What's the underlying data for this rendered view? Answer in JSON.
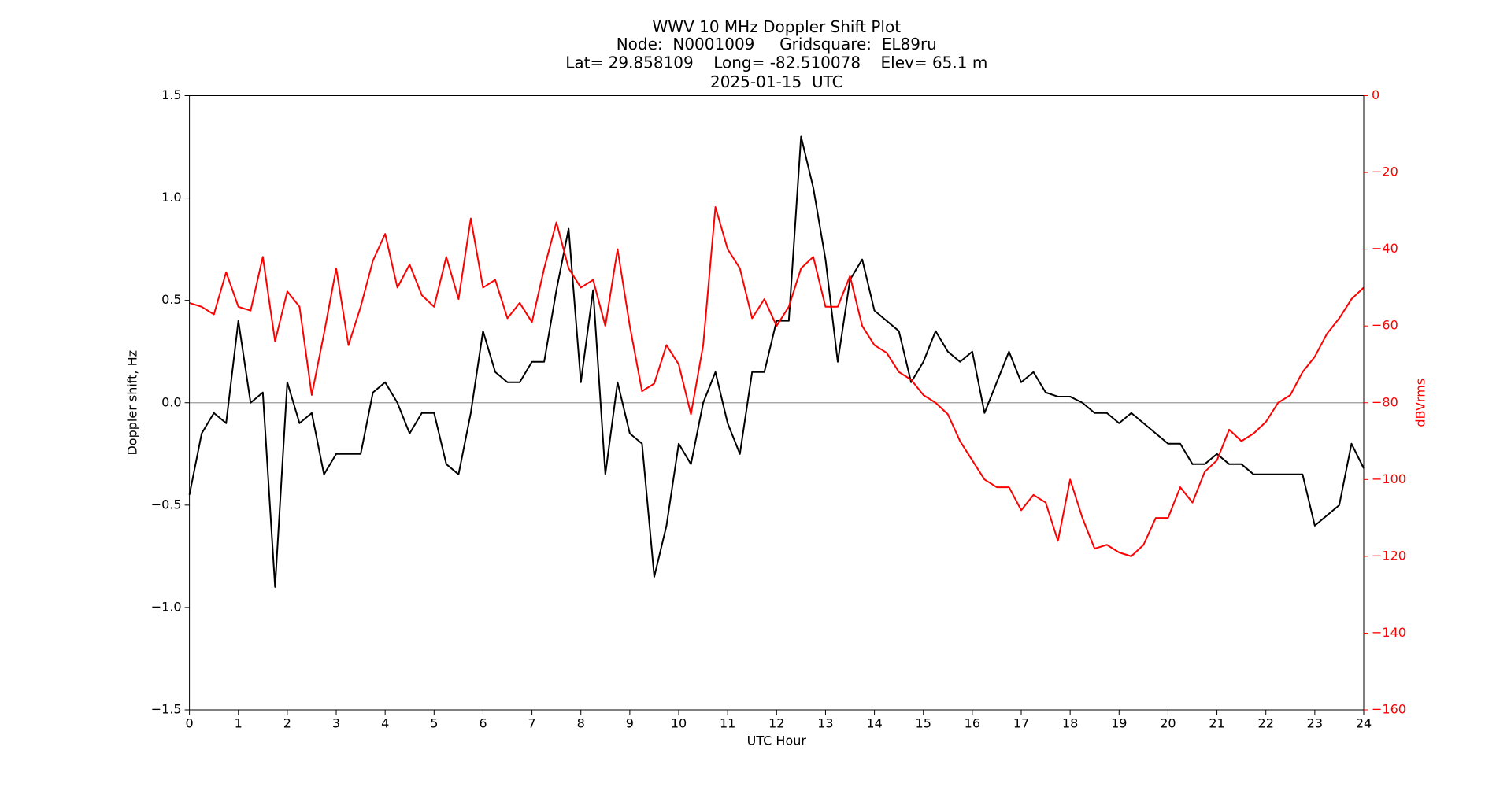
{
  "chart_data": {
    "type": "line",
    "title": [
      "WWV 10 MHz Doppler Shift Plot",
      "Node:  N0001009     Gridsquare:  EL89ru",
      "Lat= 29.858109    Long= -82.510078    Elev= 65.1 m",
      "2025-01-15  UTC"
    ],
    "x_label": "UTC Hour",
    "y_label": "Doppler shift, Hz",
    "y2_label": "dBVrms",
    "y2_color": "#ff0000",
    "zero_line": true,
    "x": [
      0,
      0.25,
      0.5,
      0.75,
      1,
      1.25,
      1.5,
      1.75,
      2,
      2.25,
      2.5,
      2.75,
      3,
      3.25,
      3.5,
      3.75,
      4,
      4.25,
      4.5,
      4.75,
      5,
      5.25,
      5.5,
      5.75,
      6,
      6.25,
      6.5,
      6.75,
      7,
      7.25,
      7.5,
      7.75,
      8,
      8.25,
      8.5,
      8.75,
      9,
      9.25,
      9.5,
      9.75,
      10,
      10.25,
      10.5,
      10.75,
      11,
      11.25,
      11.5,
      11.75,
      12,
      12.25,
      12.5,
      12.75,
      13,
      13.25,
      13.5,
      13.75,
      14,
      14.25,
      14.5,
      14.75,
      15,
      15.25,
      15.5,
      15.75,
      16,
      16.25,
      16.5,
      16.75,
      17,
      17.25,
      17.5,
      17.75,
      18,
      18.25,
      18.5,
      18.75,
      19,
      19.25,
      19.5,
      19.75,
      20,
      20.25,
      20.5,
      20.75,
      21,
      21.25,
      21.5,
      21.75,
      22,
      22.25,
      22.5,
      22.75,
      23,
      23.25,
      23.5,
      23.75,
      24
    ],
    "series": [
      {
        "name": "Doppler shift",
        "color": "#000000",
        "axis": "y",
        "values": [
          -0.45,
          -0.15,
          -0.05,
          -0.1,
          0.4,
          0.0,
          0.05,
          -0.9,
          0.1,
          -0.1,
          -0.05,
          -0.35,
          -0.25,
          -0.25,
          -0.25,
          0.05,
          0.1,
          0.0,
          -0.15,
          -0.05,
          -0.05,
          -0.3,
          -0.35,
          -0.05,
          0.35,
          0.15,
          0.1,
          0.1,
          0.2,
          0.2,
          0.55,
          0.85,
          0.1,
          0.55,
          -0.35,
          0.1,
          -0.15,
          -0.2,
          -0.85,
          -0.6,
          -0.2,
          -0.3,
          0.0,
          0.15,
          -0.1,
          -0.25,
          0.15,
          0.15,
          0.4,
          0.4,
          1.3,
          1.05,
          0.7,
          0.2,
          0.6,
          0.7,
          0.45,
          0.4,
          0.35,
          0.1,
          0.2,
          0.35,
          0.25,
          0.2,
          0.25,
          -0.05,
          0.1,
          0.25,
          0.1,
          0.15,
          0.05,
          0.03,
          0.03,
          0.0,
          -0.05,
          -0.05,
          -0.1,
          -0.05,
          -0.1,
          -0.15,
          -0.2,
          -0.2,
          -0.3,
          -0.3,
          -0.25,
          -0.3,
          -0.3,
          -0.35,
          -0.35,
          -0.35,
          -0.35,
          -0.35,
          -0.6,
          -0.55,
          -0.5,
          -0.2,
          -0.32
        ]
      },
      {
        "name": "dBVrms",
        "color": "#ff0000",
        "axis": "y2",
        "values": [
          -54,
          -55,
          -57,
          -46,
          -55,
          -56,
          -42,
          -64,
          -51,
          -55,
          -78,
          -62,
          -45,
          -65,
          -55,
          -43,
          -36,
          -50,
          -44,
          -52,
          -55,
          -42,
          -53,
          -32,
          -50,
          -48,
          -58,
          -54,
          -59,
          -45,
          -33,
          -45,
          -50,
          -48,
          -60,
          -40,
          -60,
          -77,
          -75,
          -65,
          -70,
          -83,
          -65,
          -29,
          -40,
          -45,
          -58,
          -53,
          -60,
          -55,
          -45,
          -42,
          -55,
          -55,
          -47,
          -60,
          -65,
          -67,
          -72,
          -74,
          -78,
          -80,
          -83,
          -90,
          -95,
          -100,
          -102,
          -102,
          -108,
          -104,
          -106,
          -116,
          -100,
          -110,
          -118,
          -117,
          -119,
          -120,
          -117,
          -110,
          -110,
          -102,
          -106,
          -98,
          -95,
          -87,
          -90,
          -88,
          -85,
          -80,
          -78,
          -72,
          -68,
          -62,
          -58,
          -53,
          -50
        ]
      }
    ],
    "xlim": [
      0,
      24
    ],
    "xticks": [
      0,
      1,
      2,
      3,
      4,
      5,
      6,
      7,
      8,
      9,
      10,
      11,
      12,
      13,
      14,
      15,
      16,
      17,
      18,
      19,
      20,
      21,
      22,
      23,
      24
    ],
    "ylim": [
      -1.5,
      1.5
    ],
    "yticks": [
      {
        "value": -1.5,
        "label": "−1.5"
      },
      {
        "value": -1.0,
        "label": "−1.0"
      },
      {
        "value": -0.5,
        "label": "−0.5"
      },
      {
        "value": 0.0,
        "label": "0.0"
      },
      0.5,
      {
        "value": 1.0,
        "label": "1.0"
      },
      1.5
    ],
    "y2lim": [
      -160,
      0
    ],
    "y2ticks": [
      {
        "value": -160,
        "label": "−160"
      },
      {
        "value": -140,
        "label": "−140"
      },
      {
        "value": -120,
        "label": "−120"
      },
      {
        "value": -100,
        "label": "−100"
      },
      {
        "value": -80,
        "label": "−80"
      },
      {
        "value": -60,
        "label": "−60"
      },
      {
        "value": -40,
        "label": "−40"
      },
      {
        "value": -20,
        "label": "−20"
      },
      0
    ]
  }
}
